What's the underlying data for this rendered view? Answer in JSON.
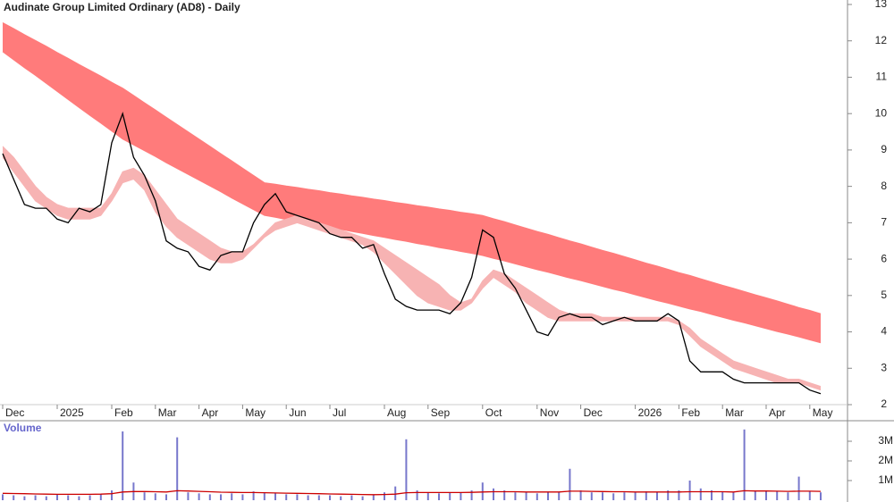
{
  "chart_data": [
    {
      "type": "line",
      "title": "Audinate Group Limited Ordinary (AD8) - Daily",
      "categories": [
        "Dec",
        null,
        null,
        null,
        null,
        "2025",
        null,
        null,
        null,
        null,
        "Feb",
        null,
        null,
        null,
        "Mar",
        null,
        null,
        null,
        "Apr",
        null,
        null,
        null,
        "May",
        null,
        null,
        null,
        "Jun",
        null,
        null,
        null,
        "Jul",
        null,
        null,
        null,
        null,
        "Aug",
        null,
        null,
        null,
        "Sep",
        null,
        null,
        null,
        null,
        "Oct",
        null,
        null,
        null,
        null,
        "Nov",
        null,
        null,
        null,
        "Dec",
        null,
        null,
        null,
        null,
        "2026",
        null,
        null,
        null,
        "Feb",
        null,
        null,
        null,
        "Mar",
        null,
        null,
        null,
        "Apr",
        null,
        null,
        null,
        "May",
        null
      ],
      "series": [
        {
          "color": "#000000",
          "values": [
            8.9,
            8.2,
            7.5,
            7.4,
            7.4,
            7.1,
            7.0,
            7.4,
            7.3,
            7.5,
            9.2,
            10.0,
            8.8,
            8.3,
            7.6,
            6.5,
            6.3,
            6.2,
            5.8,
            5.7,
            6.1,
            6.2,
            6.2,
            7.0,
            7.5,
            7.8,
            7.3,
            7.2,
            7.1,
            7.0,
            6.7,
            6.6,
            6.6,
            6.3,
            6.4,
            5.6,
            4.9,
            4.7,
            4.6,
            4.6,
            4.6,
            4.5,
            4.8,
            5.5,
            6.8,
            6.6,
            5.6,
            5.2,
            4.6,
            4.0,
            3.9,
            4.4,
            4.5,
            4.4,
            4.4,
            4.2,
            4.3,
            4.4,
            4.3,
            4.3,
            4.3,
            4.5,
            4.3,
            3.2,
            2.9,
            2.9,
            2.9,
            2.7,
            2.6,
            2.6,
            2.6,
            2.6,
            2.6,
            2.6,
            2.4,
            2.3
          ]
        }
      ],
      "bands": [
        {
          "color": "#ff7b7b",
          "upper": [
            12.5,
            12.34,
            12.17,
            12.01,
            11.85,
            11.68,
            11.52,
            11.35,
            11.19,
            11.03,
            10.86,
            10.7,
            10.5,
            10.3,
            10.1,
            9.9,
            9.7,
            9.5,
            9.3,
            9.1,
            8.9,
            8.7,
            8.5,
            8.3,
            8.1,
            8.06,
            8.01,
            7.97,
            7.92,
            7.88,
            7.83,
            7.79,
            7.74,
            7.7,
            7.65,
            7.61,
            7.56,
            7.52,
            7.47,
            7.43,
            7.38,
            7.34,
            7.29,
            7.25,
            7.2,
            7.11,
            7.03,
            6.94,
            6.85,
            6.76,
            6.68,
            6.59,
            6.5,
            6.42,
            6.33,
            6.24,
            6.16,
            6.07,
            5.98,
            5.89,
            5.81,
            5.72,
            5.63,
            5.55,
            5.46,
            5.37,
            5.28,
            5.2,
            5.11,
            5.02,
            4.94,
            4.85,
            4.76,
            4.67,
            4.59,
            4.5
          ],
          "lower": [
            11.7,
            11.48,
            11.26,
            11.05,
            10.83,
            10.61,
            10.39,
            10.17,
            9.95,
            9.74,
            9.52,
            9.3,
            9.14,
            8.98,
            8.82,
            8.65,
            8.49,
            8.33,
            8.17,
            8.01,
            7.85,
            7.68,
            7.52,
            7.36,
            7.2,
            7.15,
            7.09,
            7.04,
            6.98,
            6.93,
            6.87,
            6.82,
            6.76,
            6.71,
            6.65,
            6.6,
            6.54,
            6.49,
            6.43,
            6.38,
            6.32,
            6.27,
            6.21,
            6.16,
            6.1,
            6.02,
            5.95,
            5.87,
            5.79,
            5.71,
            5.64,
            5.56,
            5.48,
            5.41,
            5.33,
            5.25,
            5.17,
            5.1,
            5.02,
            4.94,
            4.86,
            4.79,
            4.71,
            4.63,
            4.56,
            4.48,
            4.4,
            4.32,
            4.25,
            4.17,
            4.09,
            4.01,
            3.94,
            3.86,
            3.78,
            3.7
          ]
        },
        {
          "color": "#f7b3b3",
          "upper": [
            9.1,
            8.8,
            8.4,
            8.0,
            7.7,
            7.5,
            7.4,
            7.4,
            7.4,
            7.4,
            7.8,
            8.4,
            8.5,
            8.3,
            7.9,
            7.5,
            7.1,
            6.9,
            6.7,
            6.5,
            6.3,
            6.2,
            6.2,
            6.4,
            6.7,
            7.0,
            7.1,
            7.2,
            7.1,
            7.0,
            6.9,
            6.8,
            6.7,
            6.6,
            6.5,
            6.3,
            6.1,
            5.9,
            5.7,
            5.5,
            5.3,
            5.0,
            4.8,
            4.9,
            5.4,
            5.7,
            5.6,
            5.4,
            5.2,
            5.0,
            4.8,
            4.6,
            4.5,
            4.5,
            4.5,
            4.4,
            4.4,
            4.4,
            4.4,
            4.4,
            4.4,
            4.4,
            4.3,
            4.1,
            3.8,
            3.6,
            3.4,
            3.2,
            3.1,
            3.0,
            2.9,
            2.8,
            2.7,
            2.7,
            2.6,
            2.5
          ],
          "lower": [
            8.8,
            8.4,
            8.0,
            7.6,
            7.4,
            7.2,
            7.1,
            7.1,
            7.1,
            7.2,
            7.6,
            8.1,
            8.2,
            7.9,
            7.3,
            6.9,
            6.6,
            6.4,
            6.2,
            6.0,
            5.9,
            5.9,
            6.0,
            6.3,
            6.6,
            6.8,
            6.9,
            7.0,
            6.9,
            6.8,
            6.7,
            6.6,
            6.5,
            6.4,
            6.2,
            5.9,
            5.6,
            5.3,
            5.0,
            4.8,
            4.7,
            4.6,
            4.6,
            4.8,
            5.2,
            5.5,
            5.3,
            5.1,
            4.8,
            4.6,
            4.4,
            4.3,
            4.3,
            4.3,
            4.3,
            4.3,
            4.3,
            4.3,
            4.3,
            4.3,
            4.3,
            4.3,
            4.2,
            3.9,
            3.6,
            3.4,
            3.2,
            3.0,
            2.9,
            2.8,
            2.7,
            2.6,
            2.6,
            2.6,
            2.5,
            2.4
          ]
        }
      ],
      "ylim": [
        2,
        13
      ],
      "yticks": [
        2,
        3,
        4,
        5,
        6,
        7,
        8,
        9,
        10,
        11,
        12,
        13
      ]
    },
    {
      "type": "bar",
      "title": "Volume",
      "series": [
        {
          "type": "bar",
          "color": "#7777cc",
          "values": [
            300000,
            250000,
            200000,
            250000,
            200000,
            300000,
            250000,
            200000,
            250000,
            300000,
            500000,
            3500000,
            900000,
            400000,
            350000,
            300000,
            3200000,
            400000,
            350000,
            300000,
            300000,
            350000,
            300000,
            450000,
            400000,
            350000,
            300000,
            300000,
            250000,
            250000,
            250000,
            200000,
            250000,
            200000,
            250000,
            400000,
            700000,
            3100000,
            500000,
            400000,
            350000,
            400000,
            400000,
            500000,
            900000,
            600000,
            500000,
            400000,
            400000,
            350000,
            400000,
            400000,
            1600000,
            500000,
            400000,
            400000,
            350000,
            400000,
            400000,
            450000,
            400000,
            500000,
            500000,
            1000000,
            600000,
            500000,
            450000,
            400000,
            3600000,
            500000,
            500000,
            450000,
            400000,
            1200000,
            450000,
            400000
          ]
        },
        {
          "type": "line",
          "color": "#cc0000",
          "values": [
            350000,
            340000,
            330000,
            320000,
            310000,
            300000,
            300000,
            300000,
            300000,
            310000,
            330000,
            420000,
            440000,
            440000,
            430000,
            420000,
            480000,
            470000,
            450000,
            430000,
            410000,
            400000,
            390000,
            390000,
            380000,
            370000,
            360000,
            350000,
            340000,
            330000,
            320000,
            310000,
            300000,
            290000,
            280000,
            290000,
            310000,
            380000,
            390000,
            390000,
            390000,
            390000,
            390000,
            400000,
            420000,
            430000,
            430000,
            430000,
            420000,
            420000,
            420000,
            420000,
            460000,
            460000,
            450000,
            440000,
            430000,
            430000,
            420000,
            420000,
            420000,
            420000,
            420000,
            430000,
            430000,
            430000,
            430000,
            420000,
            480000,
            470000,
            470000,
            460000,
            450000,
            460000,
            460000,
            450000
          ]
        }
      ],
      "ylim": [
        0,
        4000000
      ],
      "yticks": [
        {
          "value": 1000000,
          "label": "1M"
        },
        {
          "value": 2000000,
          "label": "2M"
        },
        {
          "value": 3000000,
          "label": "3M"
        }
      ]
    }
  ]
}
